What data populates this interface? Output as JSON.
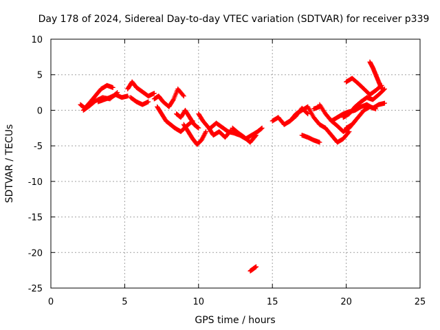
{
  "chart_data": {
    "type": "scatter",
    "title": "Day 178 of 2024, Sidereal Day-to-day VTEC variation (SDTVAR) for receiver p339",
    "xlabel": "GPS time / hours",
    "ylabel": "SDTVAR / TECUs",
    "xlim": [
      0,
      25
    ],
    "ylim": [
      -25,
      10
    ],
    "xticks": [
      0,
      5,
      10,
      15,
      20,
      25
    ],
    "yticks": [
      10,
      5,
      0,
      -5,
      -10,
      -15,
      -20,
      -25
    ],
    "grid": true,
    "marker": "plus",
    "series": [
      {
        "name": "SDTVAR",
        "color": "#ff0000",
        "tracks": [
          {
            "x": [
              2.0,
              2.3,
              2.6,
              3.0,
              3.4,
              3.8,
              4.2
            ],
            "y": [
              0.8,
              0.3,
              1.0,
              2.0,
              3.0,
              3.5,
              3.2
            ]
          },
          {
            "x": [
              2.2,
              2.6,
              3.0,
              3.5,
              4.0,
              4.5
            ],
            "y": [
              0.0,
              0.6,
              1.3,
              1.8,
              1.6,
              2.5
            ]
          },
          {
            "x": [
              3.2,
              3.6,
              4.0,
              4.4,
              4.8,
              5.2
            ],
            "y": [
              1.2,
              1.5,
              1.8,
              2.2,
              1.8,
              2.0
            ]
          },
          {
            "x": [
              5.2,
              5.5,
              5.8,
              6.2,
              6.6,
              7.0
            ],
            "y": [
              3.0,
              4.0,
              3.2,
              2.6,
              2.0,
              2.4
            ]
          },
          {
            "x": [
              5.4,
              5.8,
              6.2,
              6.6
            ],
            "y": [
              1.8,
              1.2,
              0.8,
              1.2
            ]
          },
          {
            "x": [
              7.0,
              7.3,
              7.6,
              8.0,
              8.3,
              8.6,
              9.0
            ],
            "y": [
              1.6,
              2.0,
              1.2,
              0.5,
              1.5,
              3.0,
              2.0
            ]
          },
          {
            "x": [
              7.2,
              7.5,
              7.8,
              8.1,
              8.4,
              8.8,
              9.2,
              9.6
            ],
            "y": [
              0.5,
              -0.5,
              -1.5,
              -2.0,
              -2.5,
              -3.0,
              -2.2,
              -1.5
            ]
          },
          {
            "x": [
              8.5,
              8.8,
              9.1,
              9.4,
              9.7,
              10.0
            ],
            "y": [
              -0.5,
              -1.0,
              0.0,
              -1.0,
              -2.0,
              -2.5
            ]
          },
          {
            "x": [
              9.0,
              9.3,
              9.6,
              9.9,
              10.2,
              10.5
            ],
            "y": [
              -2.0,
              -3.0,
              -4.0,
              -4.8,
              -4.2,
              -3.0
            ]
          },
          {
            "x": [
              10.0,
              10.3,
              10.7,
              11.0,
              11.4,
              11.8,
              12.2
            ],
            "y": [
              -0.5,
              -1.5,
              -2.5,
              -3.5,
              -3.0,
              -3.8,
              -2.8
            ]
          },
          {
            "x": [
              10.8,
              11.2,
              11.6,
              12.0,
              12.4,
              12.8,
              13.2,
              13.6,
              14.0,
              14.3
            ],
            "y": [
              -2.5,
              -1.8,
              -2.4,
              -3.0,
              -3.2,
              -3.5,
              -4.0,
              -3.5,
              -3.0,
              -2.5
            ]
          },
          {
            "x": [
              12.3,
              12.7,
              13.1,
              13.5,
              13.9
            ],
            "y": [
              -2.5,
              -3.2,
              -3.8,
              -4.5,
              -3.5
            ]
          },
          {
            "x": [
              13.5,
              13.7,
              13.9
            ],
            "y": [
              -22.6,
              -22.3,
              -22.0
            ]
          },
          {
            "x": [
              15.0,
              15.4,
              15.8,
              16.2,
              16.6,
              17.0,
              17.4,
              17.8,
              18.2,
              18.6
            ],
            "y": [
              -1.5,
              -1.0,
              -2.0,
              -1.5,
              -0.5,
              0.0,
              0.5,
              -1.0,
              -2.0,
              -2.5
            ]
          },
          {
            "x": [
              15.8,
              16.2,
              16.6,
              17.0,
              17.4
            ],
            "y": [
              -2.0,
              -1.5,
              -0.8,
              0.3,
              -0.5
            ]
          },
          {
            "x": [
              17.0,
              17.4,
              17.8,
              18.2
            ],
            "y": [
              -3.5,
              -3.8,
              -4.2,
              -4.5
            ]
          },
          {
            "x": [
              17.8,
              18.2
            ],
            "y": [
              0.2,
              0.5
            ]
          },
          {
            "x": [
              18.2,
              18.6,
              19.0,
              19.4,
              19.8,
              20.2,
              20.6
            ],
            "y": [
              0.8,
              -0.5,
              -1.5,
              -2.2,
              -3.0,
              -2.5,
              -1.5
            ]
          },
          {
            "x": [
              18.6,
              19.0,
              19.4,
              19.8,
              20.2
            ],
            "y": [
              -2.5,
              -3.5,
              -4.5,
              -4.0,
              -3.0
            ]
          },
          {
            "x": [
              19.0,
              19.4,
              19.8,
              20.2,
              20.6,
              21.0,
              21.4,
              21.8,
              22.2,
              22.6
            ],
            "y": [
              -1.5,
              -1.0,
              -0.5,
              -0.2,
              0.0,
              0.5,
              0.8,
              0.3,
              0.8,
              1.0
            ]
          },
          {
            "x": [
              19.8,
              20.2,
              20.6,
              21.0,
              21.4,
              21.8,
              22.2,
              22.6
            ],
            "y": [
              -1.0,
              -0.5,
              0.5,
              1.2,
              1.8,
              1.5,
              2.2,
              3.0
            ]
          },
          {
            "x": [
              20.0,
              20.4,
              20.8,
              21.2,
              21.6,
              22.0
            ],
            "y": [
              -2.5,
              -2.0,
              -1.0,
              0.0,
              0.5,
              0.2
            ]
          },
          {
            "x": [
              20.0,
              20.4,
              20.8,
              21.2,
              21.6,
              22.0,
              22.4
            ],
            "y": [
              4.0,
              4.5,
              3.8,
              3.0,
              2.2,
              2.8,
              3.5
            ]
          },
          {
            "x": [
              21.6,
              21.8,
              22.0,
              22.2,
              22.4
            ],
            "y": [
              6.8,
              6.0,
              5.0,
              4.0,
              3.0
            ]
          }
        ]
      }
    ]
  }
}
